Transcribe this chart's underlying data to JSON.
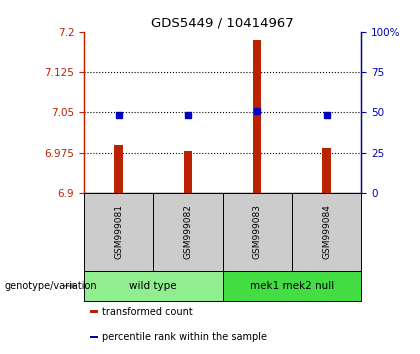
{
  "title": "GDS5449 / 10414967",
  "samples": [
    "GSM999081",
    "GSM999082",
    "GSM999083",
    "GSM999084"
  ],
  "transformed_counts": [
    6.99,
    6.978,
    7.185,
    6.984
  ],
  "percentile_values": [
    7.045,
    7.045,
    7.052,
    7.045
  ],
  "ylim_left": [
    6.9,
    7.2
  ],
  "ylim_right": [
    0,
    100
  ],
  "yticks_left": [
    6.9,
    6.975,
    7.05,
    7.125,
    7.2
  ],
  "yticks_right": [
    0,
    25,
    50,
    75,
    100
  ],
  "ytick_labels_left": [
    "6.9",
    "6.975",
    "7.05",
    "7.125",
    "7.2"
  ],
  "ytick_labels_right": [
    "0",
    "25",
    "50",
    "75",
    "100%"
  ],
  "hlines": [
    7.125,
    7.05,
    6.975
  ],
  "bar_color": "#bb2200",
  "dot_color": "#0000bb",
  "bar_width": 0.12,
  "groups": [
    {
      "label": "wild type",
      "indices": [
        0,
        1
      ],
      "color": "#90ee90"
    },
    {
      "label": "mek1 mek2 null",
      "indices": [
        2,
        3
      ],
      "color": "#44dd44"
    }
  ],
  "genotype_label": "genotype/variation",
  "legend_items": [
    {
      "color": "#bb2200",
      "label": "transformed count"
    },
    {
      "color": "#0000bb",
      "label": "percentile rank within the sample"
    }
  ],
  "sample_box_color": "#cccccc",
  "bg_color": "#ffffff"
}
